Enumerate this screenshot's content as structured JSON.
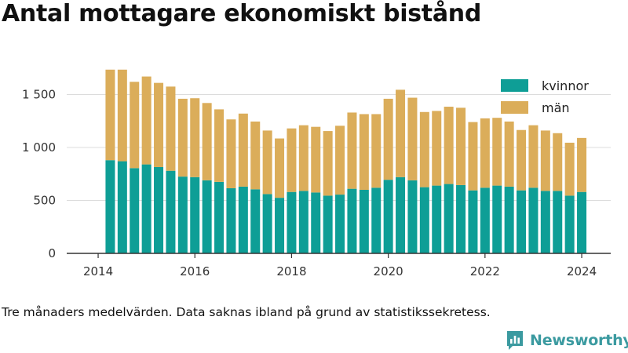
{
  "title": "Antal mottagare ekonomiskt bistånd",
  "note": "Tre månaders medelvärden. Data saknas ibland på grund av statistikssekretess.",
  "brand": {
    "name": "Newsworthy",
    "icon": "newsworthy-logo-icon",
    "color": "#3b9aa0"
  },
  "chart_data": {
    "type": "bar",
    "stacked": true,
    "title": "",
    "xlabel": "",
    "ylabel": "",
    "ylim": [
      0,
      1800
    ],
    "yticks": [
      0,
      500,
      1000,
      1500
    ],
    "ytick_labels": [
      "0",
      "500",
      "1 000",
      "1 500"
    ],
    "xticks": [
      2014,
      2016,
      2018,
      2020,
      2022,
      2024
    ],
    "xtick_labels": [
      "2014",
      "2016",
      "2018",
      "2020",
      "2022",
      "2024"
    ],
    "grid": "horizontal",
    "legend": "top-right",
    "x": [
      2014.25,
      2014.5,
      2014.75,
      2015.0,
      2015.25,
      2015.5,
      2015.75,
      2016.0,
      2016.25,
      2016.5,
      2016.75,
      2017.0,
      2017.25,
      2017.5,
      2017.75,
      2018.0,
      2018.25,
      2018.5,
      2018.75,
      2019.0,
      2019.25,
      2019.5,
      2019.75,
      2020.0,
      2020.25,
      2020.5,
      2020.75,
      2021.0,
      2021.25,
      2021.5,
      2021.75,
      2022.0,
      2022.25,
      2022.5,
      2022.75,
      2023.0,
      2023.25,
      2023.5,
      2023.75,
      2024.0
    ],
    "series": [
      {
        "name": "kvinnor",
        "color": "#0e9e96",
        "values": [
          880,
          870,
          805,
          840,
          815,
          780,
          725,
          720,
          690,
          675,
          615,
          630,
          605,
          560,
          525,
          580,
          590,
          575,
          545,
          555,
          610,
          600,
          620,
          695,
          720,
          690,
          625,
          640,
          655,
          645,
          595,
          620,
          640,
          630,
          595,
          620,
          590,
          590,
          545,
          580
        ]
      },
      {
        "name": "män",
        "color": "#dbad5a",
        "values": [
          855,
          865,
          815,
          830,
          795,
          795,
          735,
          745,
          730,
          685,
          650,
          690,
          640,
          600,
          560,
          600,
          620,
          620,
          610,
          650,
          720,
          715,
          695,
          765,
          825,
          780,
          710,
          705,
          730,
          730,
          645,
          655,
          640,
          615,
          570,
          590,
          570,
          545,
          500,
          510
        ]
      }
    ]
  }
}
